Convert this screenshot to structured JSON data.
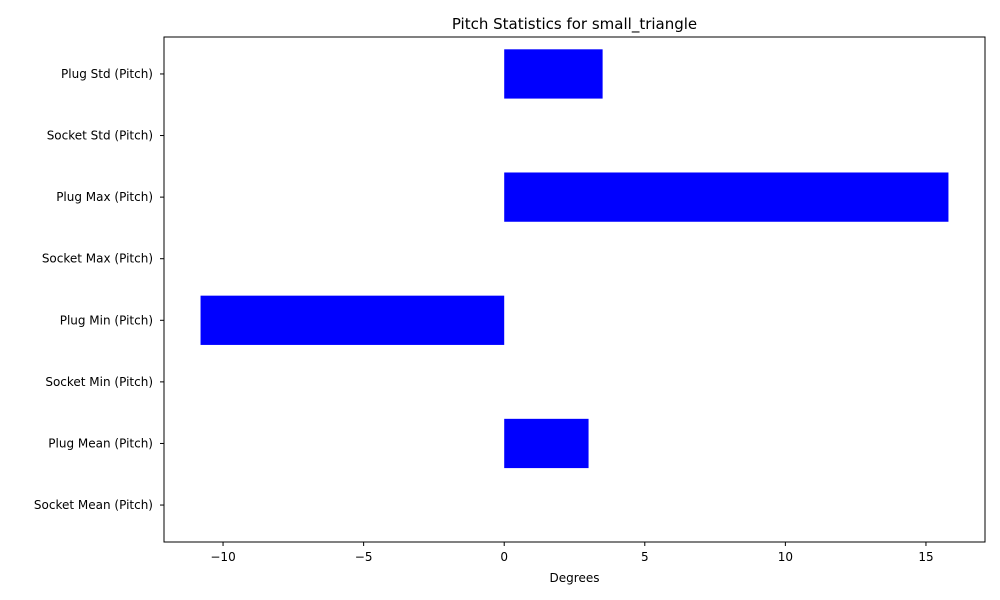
{
  "chart_data": {
    "type": "bar",
    "orientation": "horizontal",
    "title": "Pitch Statistics for small_triangle",
    "xlabel": "Degrees",
    "ylabel": "",
    "xlim": [
      -12.1,
      17.1
    ],
    "xticks": [
      -10,
      -5,
      0,
      5,
      10,
      15
    ],
    "xtick_labels": [
      "−10",
      "−5",
      "0",
      "5",
      "10",
      "15"
    ],
    "grid": false,
    "bar_color": "#0000ff",
    "categories": [
      "Socket Mean (Pitch)",
      "Plug Mean (Pitch)",
      "Socket Min (Pitch)",
      "Plug Min (Pitch)",
      "Socket Max (Pitch)",
      "Plug Max (Pitch)",
      "Socket Std (Pitch)",
      "Plug Std (Pitch)"
    ],
    "values": [
      0,
      3.0,
      0,
      -10.8,
      0,
      15.8,
      0,
      3.5
    ]
  }
}
